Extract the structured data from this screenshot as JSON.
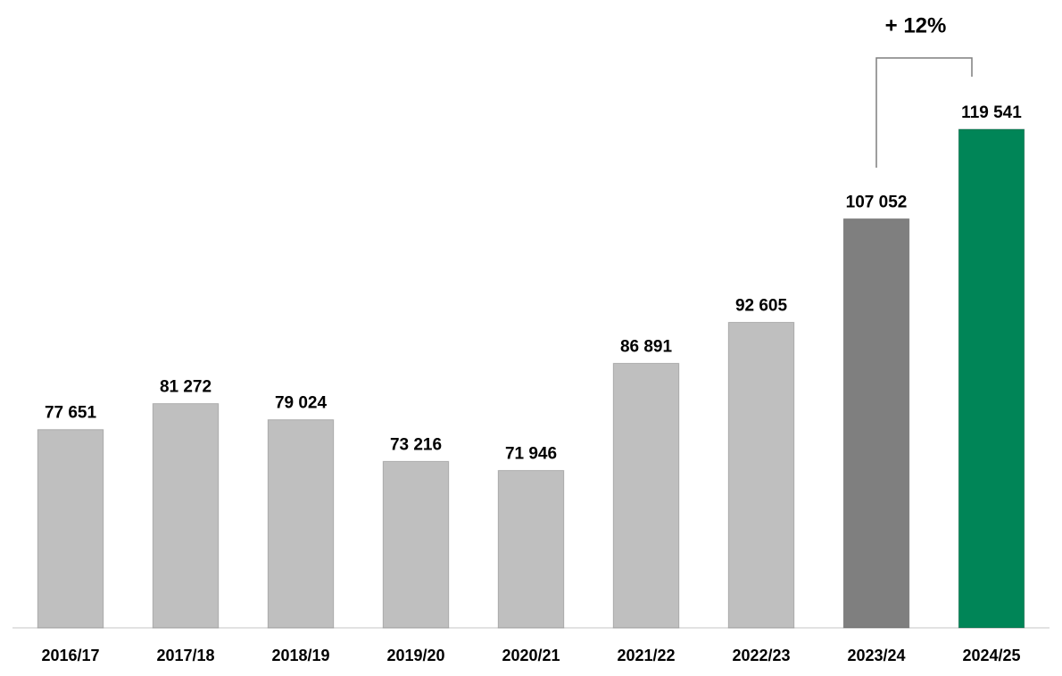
{
  "chart_data": {
    "type": "bar",
    "categories": [
      "2016/17",
      "2017/18",
      "2018/19",
      "2019/20",
      "2020/21",
      "2021/22",
      "2022/23",
      "2023/24",
      "2024/25"
    ],
    "values": [
      77651,
      81272,
      79024,
      73216,
      71946,
      86891,
      92605,
      107052,
      119541
    ],
    "value_labels": [
      "77 651",
      "81 272",
      "79 024",
      "73 216",
      "71 946",
      "86 891",
      "92 605",
      "107 052",
      "119 541"
    ],
    "colors": [
      "#bfbfbf",
      "#bfbfbf",
      "#bfbfbf",
      "#bfbfbf",
      "#bfbfbf",
      "#bfbfbf",
      "#bfbfbf",
      "#7f7f7f",
      "#008557"
    ],
    "ylim": [
      50000,
      125000
    ],
    "annotation": "+ 12%"
  }
}
